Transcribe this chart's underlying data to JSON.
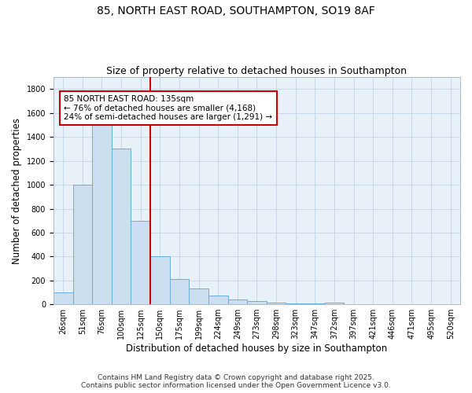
{
  "title_line1": "85, NORTH EAST ROAD, SOUTHAMPTON, SO19 8AF",
  "title_line2": "Size of property relative to detached houses in Southampton",
  "xlabel": "Distribution of detached houses by size in Southampton",
  "ylabel": "Number of detached properties",
  "categories": [
    "26sqm",
    "51sqm",
    "76sqm",
    "100sqm",
    "125sqm",
    "150sqm",
    "175sqm",
    "199sqm",
    "224sqm",
    "249sqm",
    "273sqm",
    "298sqm",
    "323sqm",
    "347sqm",
    "372sqm",
    "397sqm",
    "421sqm",
    "446sqm",
    "471sqm",
    "495sqm",
    "520sqm"
  ],
  "values": [
    100,
    1000,
    1500,
    1300,
    700,
    400,
    210,
    130,
    75,
    40,
    25,
    15,
    10,
    5,
    15,
    0,
    0,
    0,
    0,
    0,
    0
  ],
  "bar_color": "#ccdff0",
  "bar_edge_color": "#6aaed6",
  "grid_color": "#c8d8ea",
  "background_color": "#e8f0f8",
  "vline_color": "#cc0000",
  "vline_x_index": 4.5,
  "annotation_text": "85 NORTH EAST ROAD: 135sqm\n← 76% of detached houses are smaller (4,168)\n24% of semi-detached houses are larger (1,291) →",
  "annotation_box_color": "#cc0000",
  "ylim": [
    0,
    1900
  ],
  "yticks": [
    0,
    200,
    400,
    600,
    800,
    1000,
    1200,
    1400,
    1600,
    1800
  ],
  "footer_line1": "Contains HM Land Registry data © Crown copyright and database right 2025.",
  "footer_line2": "Contains public sector information licensed under the Open Government Licence v3.0.",
  "title_fontsize": 10,
  "subtitle_fontsize": 9,
  "axis_label_fontsize": 8.5,
  "tick_fontsize": 7,
  "annotation_fontsize": 7.5,
  "footer_fontsize": 6.5
}
